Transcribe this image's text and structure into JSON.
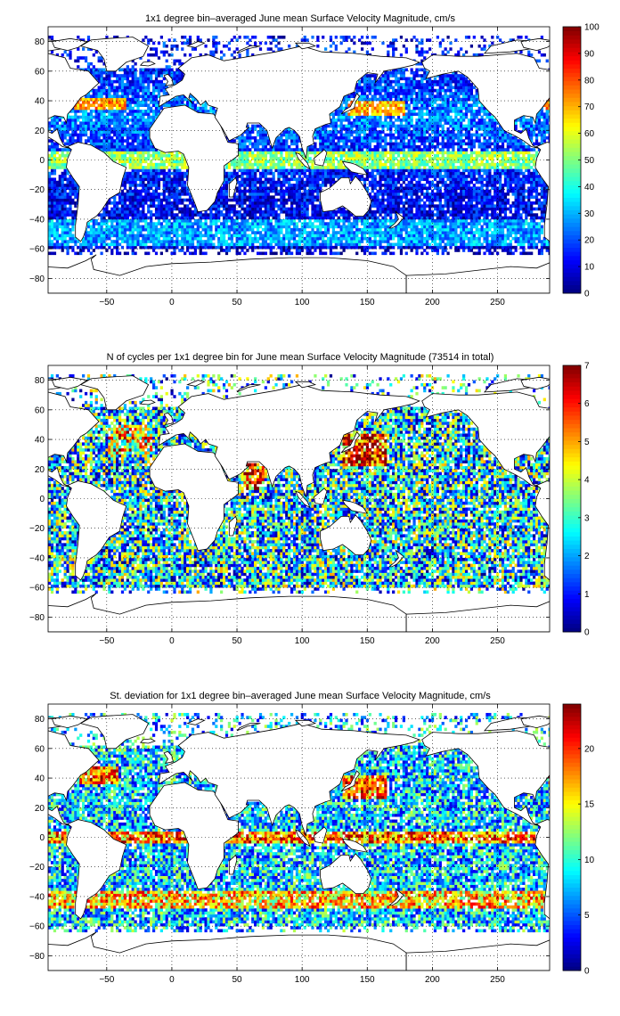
{
  "colors": {
    "land": "#ffffff",
    "coast": "#000000",
    "grid": "#000000",
    "colormap": "jet"
  },
  "chart_data": [
    {
      "type": "heatmap",
      "title": "1x1 degree bin–averaged June mean Surface Velocity Magnitude, cm/s",
      "xlim": [
        -95,
        290
      ],
      "ylim": [
        -90,
        90
      ],
      "xticks": [
        -50,
        0,
        50,
        100,
        150,
        200,
        250
      ],
      "yticks": [
        80,
        60,
        40,
        20,
        0,
        -20,
        -40,
        -60,
        -80
      ],
      "grid": true,
      "colorbar": {
        "min": 0,
        "max": 100,
        "ticks": [
          100,
          90,
          80,
          70,
          60,
          50,
          40,
          30,
          20,
          10,
          0
        ]
      }
    },
    {
      "type": "heatmap",
      "title": "N of cycles per 1x1 degree bin for June mean Surface Velocity Magnitude (73514 in total)",
      "xlim": [
        -95,
        290
      ],
      "ylim": [
        -90,
        90
      ],
      "xticks": [
        -50,
        0,
        50,
        100,
        150,
        200,
        250
      ],
      "yticks": [
        80,
        60,
        40,
        20,
        0,
        -20,
        -40,
        -60,
        -80
      ],
      "grid": true,
      "colorbar": {
        "min": 0,
        "max": 7,
        "ticks": [
          7,
          6,
          5,
          4,
          3,
          2,
          1,
          0
        ]
      }
    },
    {
      "type": "heatmap",
      "title": "St. deviation for 1x1 degree bin–averaged June mean Surface Velocity Magnitude, cm/s",
      "xlim": [
        -95,
        290
      ],
      "ylim": [
        -90,
        90
      ],
      "xticks": [
        -50,
        0,
        50,
        100,
        150,
        200,
        250
      ],
      "yticks": [
        80,
        60,
        40,
        20,
        0,
        -20,
        -40,
        -60,
        -80
      ],
      "grid": true,
      "colorbar": {
        "min": 0,
        "max": 24,
        "ticks": [
          20,
          15,
          10,
          5,
          0
        ]
      }
    }
  ]
}
